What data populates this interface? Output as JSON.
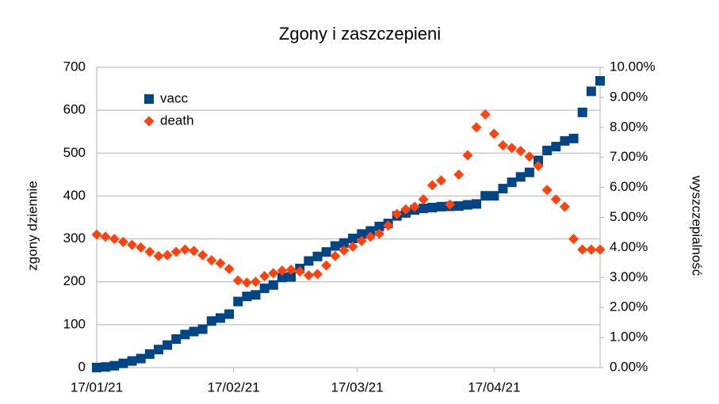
{
  "chart_data": {
    "type": "scatter",
    "title": "Zgony i zaszczepieni",
    "y_label": "zgony dziennie",
    "y2_label": "wyszczepialność",
    "x": [
      "2021-01-17",
      "2021-01-19",
      "2021-01-21",
      "2021-01-23",
      "2021-01-25",
      "2021-01-27",
      "2021-01-29",
      "2021-01-31",
      "2021-02-02",
      "2021-02-04",
      "2021-02-06",
      "2021-02-08",
      "2021-02-10",
      "2021-02-12",
      "2021-02-14",
      "2021-02-16",
      "2021-02-18",
      "2021-02-20",
      "2021-02-22",
      "2021-02-24",
      "2021-02-26",
      "2021-02-28",
      "2021-03-02",
      "2021-03-04",
      "2021-03-06",
      "2021-03-08",
      "2021-03-10",
      "2021-03-12",
      "2021-03-14",
      "2021-03-16",
      "2021-03-18",
      "2021-03-20",
      "2021-03-22",
      "2021-03-24",
      "2021-03-26",
      "2021-03-28",
      "2021-03-30",
      "2021-04-01",
      "2021-04-03",
      "2021-04-05",
      "2021-04-07",
      "2021-04-09",
      "2021-04-11",
      "2021-04-13",
      "2021-04-15",
      "2021-04-17",
      "2021-04-19",
      "2021-04-21",
      "2021-04-23",
      "2021-04-25",
      "2021-04-27",
      "2021-04-29",
      "2021-05-01",
      "2021-05-03",
      "2021-05-05",
      "2021-05-07",
      "2021-05-09",
      "2021-05-11"
    ],
    "series": [
      {
        "name": "vacc",
        "color": "#004586",
        "marker": "square",
        "axis": "y2",
        "values": [
          0,
          0.02,
          0.06,
          0.14,
          0.22,
          0.3,
          0.45,
          0.6,
          0.75,
          0.95,
          1.1,
          1.2,
          1.28,
          1.55,
          1.65,
          1.78,
          2.2,
          2.37,
          2.42,
          2.64,
          2.75,
          3.0,
          3.02,
          3.3,
          3.55,
          3.7,
          3.85,
          4.05,
          4.15,
          4.3,
          4.45,
          4.55,
          4.7,
          4.8,
          5.05,
          5.15,
          5.25,
          5.3,
          5.33,
          5.36,
          5.37,
          5.38,
          5.42,
          5.45,
          5.72,
          5.72,
          5.96,
          6.17,
          6.35,
          6.5,
          6.9,
          7.23,
          7.36,
          7.55,
          7.63,
          8.5,
          9.2,
          9.55
        ]
      },
      {
        "name": "death",
        "color": "#ff420e",
        "marker": "diamond",
        "values": [
          310,
          305,
          300,
          293,
          286,
          280,
          270,
          260,
          262,
          270,
          275,
          272,
          262,
          250,
          243,
          230,
          203,
          198,
          200,
          213,
          220,
          226,
          228,
          224,
          215,
          218,
          238,
          260,
          273,
          282,
          295,
          305,
          312,
          331,
          358,
          369,
          375,
          392,
          425,
          436,
          380,
          450,
          495,
          560,
          590,
          545,
          518,
          512,
          505,
          492,
          470,
          414,
          392,
          375,
          300,
          275,
          275,
          275
        ]
      }
    ],
    "xlim": [
      "2021-01-17",
      "2021-05-11"
    ],
    "xticks": [
      {
        "value": "2021-01-17",
        "label": "17/01/21"
      },
      {
        "value": "2021-02-17",
        "label": "17/02/21"
      },
      {
        "value": "2021-03-17",
        "label": "17/03/21"
      },
      {
        "value": "2021-04-17",
        "label": "17/04/21"
      }
    ],
    "ylim": [
      0,
      700
    ],
    "yticks": [
      0,
      100,
      200,
      300,
      400,
      500,
      600,
      700
    ],
    "y2lim": [
      0,
      10
    ],
    "y2ticks": [
      {
        "value": 0,
        "label": "0.00%"
      },
      {
        "value": 1,
        "label": "1.00%"
      },
      {
        "value": 2,
        "label": "2.00%"
      },
      {
        "value": 3,
        "label": "3.00%"
      },
      {
        "value": 4,
        "label": "4.00%"
      },
      {
        "value": 5,
        "label": "5.00%"
      },
      {
        "value": 6,
        "label": "6.00%"
      },
      {
        "value": 7,
        "label": "7.00%"
      },
      {
        "value": 8,
        "label": "8.00%"
      },
      {
        "value": 9,
        "label": "9.00%"
      },
      {
        "value": 10,
        "label": "10.00%"
      }
    ],
    "grid": true,
    "legend": "top-left"
  }
}
